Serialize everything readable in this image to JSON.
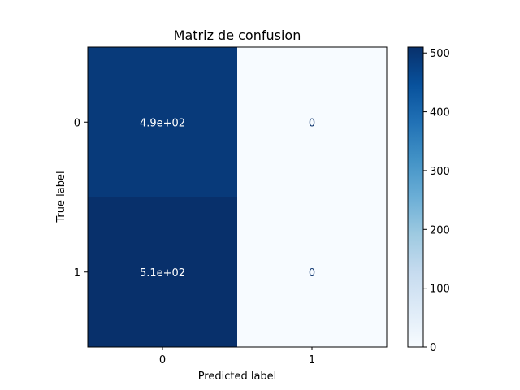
{
  "chart_data": {
    "type": "heatmap",
    "title": "Matriz de confusion",
    "xlabel": "Predicted label",
    "ylabel": "True label",
    "x_categories": [
      "0",
      "1"
    ],
    "y_categories": [
      "0",
      "1"
    ],
    "values": [
      [
        490,
        0
      ],
      [
        510,
        0
      ]
    ],
    "cell_labels": [
      [
        "4.9e+02",
        "0"
      ],
      [
        "5.1e+02",
        "0"
      ]
    ],
    "colormap": "Blues",
    "colorbar": {
      "min": 0,
      "max": 510,
      "ticks": [
        0,
        100,
        200,
        300,
        400,
        500
      ],
      "tick_labels": [
        "0",
        "100",
        "200",
        "300",
        "400",
        "500"
      ]
    },
    "grid": false,
    "text_colors": {
      "light": "#ffffff",
      "dark": "#08306b"
    }
  }
}
